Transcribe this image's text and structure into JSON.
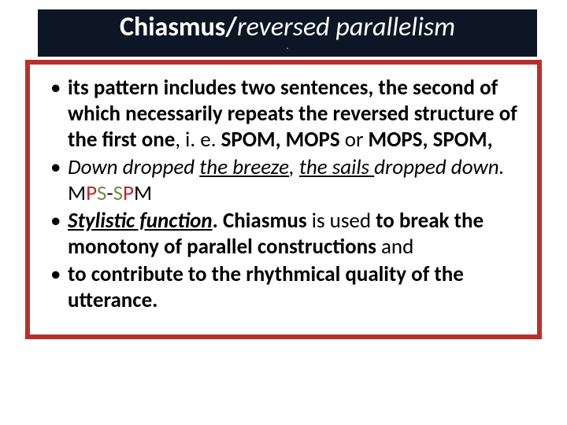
{
  "colors": {
    "title_bg": "#0d1625",
    "title_text": "#ffffff",
    "border": "#b7312c",
    "body_text": "#000000",
    "red_accent": "#c0272b",
    "green_accent": "#6f8f3f",
    "background": "#ffffff"
  },
  "typography": {
    "title_fontsize": 34,
    "body_fontsize": 27,
    "font_family": "Calibri"
  },
  "title": {
    "part1": "Chiasmus/",
    "part2": "reversed parallelism",
    "sub": "."
  },
  "bullets": {
    "b1": {
      "t1": "its pattern includes two sentences, the second of which necessarily repeats the reversed structure of the first one",
      "t2": ", i. e. ",
      "t3": "SPOM, MOPS",
      "t4": " or ",
      "t5": "MOPS, SPOM,"
    },
    "b2": {
      "t1": " Down dropped ",
      "t2": "the breeze",
      "t3": ", ",
      "t4": "the sails ",
      "t5": "dropped down. ",
      "m": "M",
      "p1": "P",
      "s1": "S",
      "dash": "-",
      "s2": "S",
      "p2": "P",
      "m2": "M"
    },
    "b3": {
      "t1": " Stylistic function",
      "t2": ". Chiasmus ",
      "t3": "is used ",
      "t4": " to break the monotony of parallel constructions ",
      "t5": "and"
    },
    "b4": {
      "t1": " to contribute to the rhythmical quality of the utterance."
    }
  }
}
